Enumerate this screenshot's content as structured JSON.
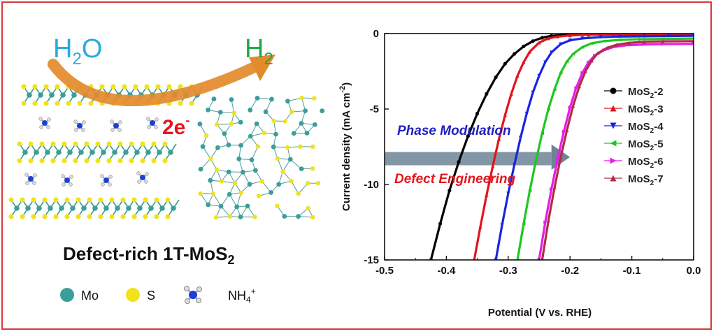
{
  "colors": {
    "frame": "#d93a3a",
    "mo_atom": "#3b9e9a",
    "s_atom": "#f2e21c",
    "h2o_text": "#2aa9e0",
    "h2_text": "#1fa84a",
    "electron_text": "#e4161c",
    "arrow": "#e38b2c",
    "phase_text": "#2020c0",
    "defect_text": "#e4161c",
    "band_arrow": "#6d8496"
  },
  "illustration": {
    "reactant": "H",
    "reactant_sub": "2",
    "reactant_tail": "O",
    "product": "H",
    "product_sub": "2",
    "electrons": "2e",
    "electrons_sup": "-",
    "caption": "Defect-rich 1T-MoS",
    "caption_sub": "2",
    "legend": {
      "mo": "Mo",
      "s": "S",
      "nh4": "NH",
      "nh4_sub": "4",
      "nh4_sup": "+"
    }
  },
  "chart_data": {
    "type": "line",
    "title": "",
    "xlabel": "Potential (V vs. RHE)",
    "ylabel_main": "Current density (mA cm",
    "ylabel_sup": "-2",
    "ylabel_tail": ")",
    "xlim": [
      -0.5,
      0.0
    ],
    "ylim": [
      -15,
      0
    ],
    "xticks": [
      -0.5,
      -0.4,
      -0.3,
      -0.2,
      -0.1,
      0.0
    ],
    "xtick_labels": [
      "-0.5",
      "-0.4",
      "-0.3",
      "-0.2",
      "-0.1",
      "0.0"
    ],
    "yticks": [
      0,
      -5,
      -10,
      -15
    ],
    "ytick_labels": [
      "0",
      "-5",
      "-10",
      "-15"
    ],
    "legend_position": "right",
    "annotations": {
      "phase": "Phase Modulation",
      "defect": "Defect Engineering"
    },
    "series": [
      {
        "name": "MoS",
        "sub": "2",
        "suffix": "-2",
        "color": "#000000",
        "marker": "circle",
        "x": [
          -0.425,
          -0.41,
          -0.395,
          -0.38,
          -0.365,
          -0.35,
          -0.335,
          -0.32,
          -0.305,
          -0.29,
          -0.275,
          -0.26,
          -0.245,
          -0.23,
          -0.2,
          -0.17,
          -0.14,
          -0.1,
          -0.05,
          0.0
        ],
        "y": [
          -15,
          -12.6,
          -10.4,
          -8.5,
          -6.8,
          -5.3,
          -4.0,
          -2.9,
          -2.0,
          -1.35,
          -0.85,
          -0.5,
          -0.28,
          -0.15,
          -0.06,
          -0.03,
          -0.02,
          -0.01,
          -0.01,
          0
        ]
      },
      {
        "name": "MoS",
        "sub": "2",
        "suffix": "-3",
        "color": "#e0141c",
        "marker": "triangle-up",
        "x": [
          -0.355,
          -0.345,
          -0.335,
          -0.325,
          -0.315,
          -0.305,
          -0.295,
          -0.285,
          -0.275,
          -0.265,
          -0.25,
          -0.235,
          -0.22,
          -0.2,
          -0.17,
          -0.13,
          -0.08,
          -0.04,
          0.0
        ],
        "y": [
          -15,
          -12.8,
          -10.7,
          -8.8,
          -7.0,
          -5.4,
          -4.0,
          -2.8,
          -1.9,
          -1.2,
          -0.6,
          -0.32,
          -0.2,
          -0.12,
          -0.08,
          -0.06,
          -0.05,
          -0.05,
          -0.05
        ]
      },
      {
        "name": "MoS",
        "sub": "2",
        "suffix": "-4",
        "color": "#1a24e0",
        "marker": "triangle-down",
        "x": [
          -0.32,
          -0.31,
          -0.3,
          -0.29,
          -0.28,
          -0.27,
          -0.26,
          -0.25,
          -0.24,
          -0.23,
          -0.215,
          -0.2,
          -0.18,
          -0.15,
          -0.12,
          -0.08,
          -0.04,
          0.0
        ],
        "y": [
          -15,
          -12.7,
          -10.6,
          -8.7,
          -6.9,
          -5.3,
          -3.9,
          -2.8,
          -1.9,
          -1.25,
          -0.7,
          -0.45,
          -0.32,
          -0.24,
          -0.2,
          -0.18,
          -0.16,
          -0.15
        ]
      },
      {
        "name": "MoS",
        "sub": "2",
        "suffix": "-5",
        "color": "#1ec81e",
        "marker": "triangle-left",
        "x": [
          -0.285,
          -0.275,
          -0.265,
          -0.255,
          -0.245,
          -0.235,
          -0.225,
          -0.215,
          -0.205,
          -0.195,
          -0.18,
          -0.165,
          -0.145,
          -0.12,
          -0.09,
          -0.05,
          0.0
        ],
        "y": [
          -15,
          -12.6,
          -10.4,
          -8.4,
          -6.6,
          -5.0,
          -3.7,
          -2.6,
          -1.85,
          -1.35,
          -0.9,
          -0.65,
          -0.5,
          -0.42,
          -0.38,
          -0.35,
          -0.33
        ]
      },
      {
        "name": "MoS",
        "sub": "2",
        "suffix": "-6",
        "color": "#e61ee6",
        "marker": "triangle-right",
        "x": [
          -0.25,
          -0.24,
          -0.23,
          -0.22,
          -0.21,
          -0.2,
          -0.19,
          -0.18,
          -0.17,
          -0.16,
          -0.145,
          -0.13,
          -0.11,
          -0.08,
          -0.05,
          0.0
        ],
        "y": [
          -15,
          -12.5,
          -10.3,
          -8.3,
          -6.5,
          -4.9,
          -3.6,
          -2.6,
          -1.9,
          -1.45,
          -1.1,
          -0.9,
          -0.78,
          -0.72,
          -0.7,
          -0.68
        ]
      },
      {
        "name": "MoS",
        "sub": "2",
        "suffix": "-7",
        "color": "#b42a4a",
        "marker": "triangle-up",
        "x": [
          -0.245,
          -0.235,
          -0.225,
          -0.215,
          -0.205,
          -0.195,
          -0.185,
          -0.175,
          -0.165,
          -0.155,
          -0.14,
          -0.125,
          -0.105,
          -0.08,
          -0.05,
          0.0
        ],
        "y": [
          -15,
          -12.4,
          -10.2,
          -8.2,
          -6.4,
          -4.8,
          -3.5,
          -2.5,
          -1.8,
          -1.3,
          -0.95,
          -0.75,
          -0.62,
          -0.55,
          -0.52,
          -0.5
        ]
      }
    ]
  }
}
